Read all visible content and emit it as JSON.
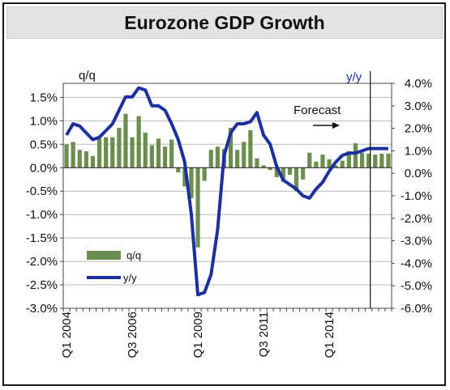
{
  "chart_data": {
    "type": "bar",
    "title": "Eurozone GDP Growth",
    "left_axis_label": "q/q",
    "right_axis_label": "y/y",
    "annotation": "Forecast",
    "x_tick_labels": [
      "Q1 2004",
      "Q3 2006",
      "Q1 2009",
      "Q3 2011",
      "Q1 2014"
    ],
    "left_axis": {
      "ylim": [
        -3.0,
        1.8
      ],
      "ticks": [
        "1.5%",
        "1.0%",
        "0.5%",
        "0.0%",
        "-0.5%",
        "-1.0%",
        "-1.5%",
        "-2.0%",
        "-2.5%",
        "-3.0%"
      ],
      "tick_values": [
        1.5,
        1.0,
        0.5,
        0.0,
        -0.5,
        -1.0,
        -1.5,
        -2.0,
        -2.5,
        -3.0
      ]
    },
    "right_axis": {
      "ylim": [
        -6.0,
        4.0
      ],
      "ticks": [
        "4.0%",
        "3.0%",
        "2.0%",
        "1.0%",
        "0.0%",
        "-1.0%",
        "-2.0%",
        "-3.0%",
        "-4.0%",
        "-5.0%",
        "-6.0%"
      ],
      "tick_values": [
        4,
        3,
        2,
        1,
        0,
        -1,
        -2,
        -3,
        -4,
        -5,
        -6
      ]
    },
    "grid": true,
    "legend_position": "bottom-left",
    "forecast_start_quarter": "Q4 2015",
    "series": [
      {
        "name": "q/q",
        "type": "bar",
        "axis": "left",
        "color": "#6b8e4e",
        "x": [
          "Q1 2004",
          "Q2 2004",
          "Q3 2004",
          "Q4 2004",
          "Q1 2005",
          "Q2 2005",
          "Q3 2005",
          "Q4 2005",
          "Q1 2006",
          "Q2 2006",
          "Q3 2006",
          "Q4 2006",
          "Q1 2007",
          "Q2 2007",
          "Q3 2007",
          "Q4 2007",
          "Q1 2008",
          "Q2 2008",
          "Q3 2008",
          "Q4 2008",
          "Q1 2009",
          "Q2 2009",
          "Q3 2009",
          "Q4 2009",
          "Q1 2010",
          "Q2 2010",
          "Q3 2010",
          "Q4 2010",
          "Q1 2011",
          "Q2 2011",
          "Q3 2011",
          "Q4 2011",
          "Q1 2012",
          "Q2 2012",
          "Q3 2012",
          "Q4 2012",
          "Q1 2013",
          "Q2 2013",
          "Q3 2013",
          "Q4 2013",
          "Q1 2014",
          "Q2 2014",
          "Q3 2014",
          "Q4 2014",
          "Q1 2015",
          "Q2 2015",
          "Q3 2015",
          "Q4 2015",
          "Q1 2016",
          "Q2 2016"
        ],
        "values": [
          0.5,
          0.55,
          0.38,
          0.35,
          0.25,
          0.62,
          0.65,
          0.65,
          0.85,
          1.15,
          0.65,
          1.1,
          0.75,
          0.48,
          0.62,
          0.45,
          0.6,
          -0.1,
          -0.4,
          -0.65,
          -1.7,
          -0.28,
          0.38,
          0.45,
          0.4,
          0.85,
          0.38,
          0.55,
          0.8,
          0.2,
          0.05,
          -0.05,
          -0.2,
          -0.3,
          -0.15,
          -0.5,
          -0.25,
          0.32,
          0.13,
          0.28,
          0.18,
          0.05,
          0.15,
          0.35,
          0.52,
          0.32,
          0.3,
          0.28,
          0.3,
          0.3
        ]
      },
      {
        "name": "y/y",
        "type": "line",
        "axis": "right",
        "color": "#1c2f9e",
        "x": [
          "Q1 2004",
          "Q2 2004",
          "Q3 2004",
          "Q4 2004",
          "Q1 2005",
          "Q2 2005",
          "Q3 2005",
          "Q4 2005",
          "Q1 2006",
          "Q2 2006",
          "Q3 2006",
          "Q4 2006",
          "Q1 2007",
          "Q2 2007",
          "Q3 2007",
          "Q4 2007",
          "Q1 2008",
          "Q2 2008",
          "Q3 2008",
          "Q4 2008",
          "Q1 2009",
          "Q2 2009",
          "Q3 2009",
          "Q4 2009",
          "Q1 2010",
          "Q2 2010",
          "Q3 2010",
          "Q4 2010",
          "Q1 2011",
          "Q2 2011",
          "Q3 2011",
          "Q4 2011",
          "Q1 2012",
          "Q2 2012",
          "Q3 2012",
          "Q4 2012",
          "Q1 2013",
          "Q2 2013",
          "Q3 2013",
          "Q4 2013",
          "Q1 2014",
          "Q2 2014",
          "Q3 2014",
          "Q4 2014",
          "Q1 2015",
          "Q2 2015",
          "Q3 2015",
          "Q4 2015",
          "Q1 2016",
          "Q2 2016"
        ],
        "values": [
          1.7,
          2.2,
          2.1,
          1.8,
          1.5,
          1.6,
          1.9,
          2.2,
          2.8,
          3.4,
          3.4,
          3.8,
          3.7,
          3.0,
          3.0,
          2.8,
          2.2,
          1.5,
          0.5,
          -1.8,
          -5.4,
          -5.3,
          -4.5,
          -2.5,
          0.8,
          1.8,
          2.2,
          2.2,
          2.3,
          2.7,
          1.7,
          1.3,
          0.3,
          -0.3,
          -0.5,
          -0.7,
          -1.0,
          -1.1,
          -0.7,
          -0.4,
          0.1,
          0.5,
          0.8,
          0.9,
          0.9,
          1.0,
          1.1,
          1.1,
          1.1,
          1.1
        ]
      }
    ]
  }
}
